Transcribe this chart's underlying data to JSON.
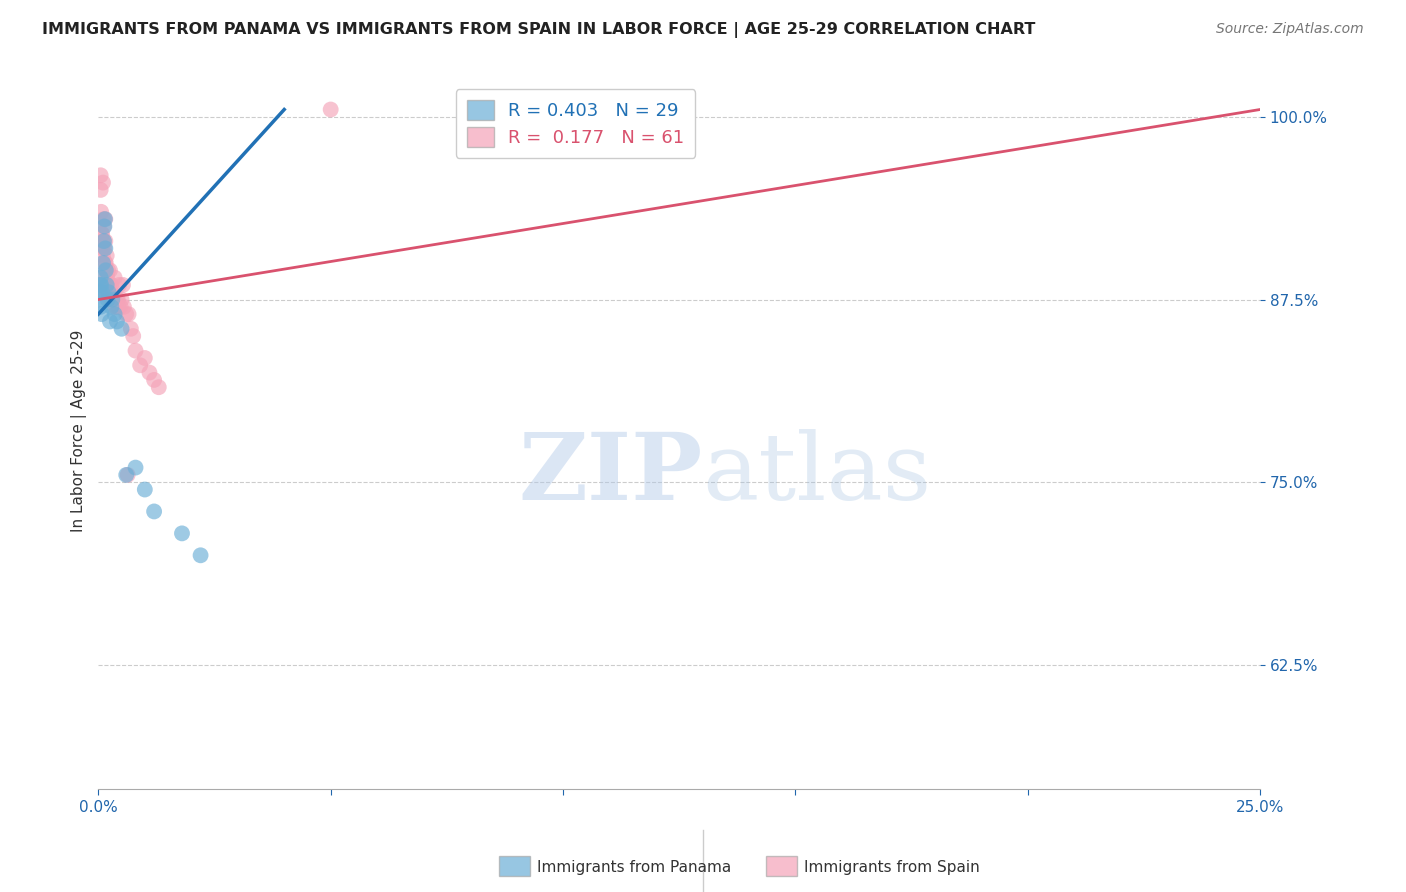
{
  "title": "IMMIGRANTS FROM PANAMA VS IMMIGRANTS FROM SPAIN IN LABOR FORCE | AGE 25-29 CORRELATION CHART",
  "source": "Source: ZipAtlas.com",
  "ylabel": "In Labor Force | Age 25-29",
  "watermark": "ZIPatlas",
  "xlim": [
    0.0,
    25.0
  ],
  "ylim": [
    54.0,
    103.0
  ],
  "yticks": [
    62.5,
    75.0,
    87.5,
    100.0
  ],
  "xticks": [
    0.0,
    5.0,
    10.0,
    15.0,
    20.0,
    25.0
  ],
  "panama_color": "#6baed6",
  "spain_color": "#f4a3b8",
  "panama_trend_color": "#2171b5",
  "spain_trend_color": "#d9526e",
  "legend_R_panama": "0.403",
  "legend_N_panama": 29,
  "legend_R_spain": "0.177",
  "legend_N_spain": 61,
  "grid_color": "#cccccc",
  "panama_x": [
    0.02,
    0.03,
    0.04,
    0.05,
    0.05,
    0.06,
    0.07,
    0.08,
    0.1,
    0.12,
    0.13,
    0.14,
    0.15,
    0.16,
    0.18,
    0.2,
    0.22,
    0.25,
    0.28,
    0.3,
    0.35,
    0.4,
    0.5,
    0.6,
    0.8,
    1.0,
    1.2,
    1.8,
    2.2
  ],
  "panama_y": [
    87.5,
    88.0,
    88.5,
    89.0,
    87.0,
    88.5,
    86.5,
    88.0,
    90.0,
    91.5,
    92.5,
    93.0,
    91.0,
    89.5,
    88.5,
    87.5,
    88.0,
    86.0,
    87.0,
    87.5,
    86.5,
    86.0,
    85.5,
    75.5,
    76.0,
    74.5,
    73.0,
    71.5,
    70.0
  ],
  "spain_x": [
    0.02,
    0.03,
    0.04,
    0.05,
    0.05,
    0.06,
    0.07,
    0.08,
    0.09,
    0.1,
    0.11,
    0.12,
    0.13,
    0.14,
    0.15,
    0.16,
    0.17,
    0.18,
    0.19,
    0.2,
    0.21,
    0.22,
    0.23,
    0.24,
    0.25,
    0.26,
    0.27,
    0.28,
    0.29,
    0.3,
    0.32,
    0.34,
    0.36,
    0.38,
    0.4,
    0.42,
    0.45,
    0.48,
    0.5,
    0.55,
    0.6,
    0.65,
    0.7,
    0.75,
    0.8,
    0.9,
    1.0,
    1.1,
    1.2,
    1.3,
    0.35,
    0.43,
    0.53,
    0.63,
    5.0,
    0.08,
    0.1,
    0.12,
    0.15,
    0.2,
    0.25
  ],
  "spain_y": [
    88.0,
    88.5,
    89.0,
    96.0,
    95.0,
    93.5,
    92.0,
    91.5,
    91.0,
    90.5,
    93.0,
    91.5,
    91.0,
    90.0,
    91.5,
    90.0,
    89.5,
    90.5,
    89.0,
    88.5,
    89.5,
    88.5,
    88.0,
    88.5,
    87.5,
    88.0,
    88.0,
    88.5,
    87.5,
    87.5,
    87.5,
    87.5,
    87.0,
    87.0,
    87.5,
    87.5,
    88.5,
    87.0,
    87.5,
    87.0,
    86.5,
    86.5,
    85.5,
    85.0,
    84.0,
    83.0,
    83.5,
    82.5,
    82.0,
    81.5,
    89.0,
    87.0,
    88.5,
    75.5,
    100.5,
    92.0,
    95.5,
    92.5,
    93.0,
    88.0,
    89.5
  ],
  "panama_trend_x": [
    0.0,
    4.0
  ],
  "panama_trend_y": [
    86.5,
    100.5
  ],
  "spain_trend_x": [
    0.0,
    25.0
  ],
  "spain_trend_y": [
    87.5,
    100.5
  ]
}
